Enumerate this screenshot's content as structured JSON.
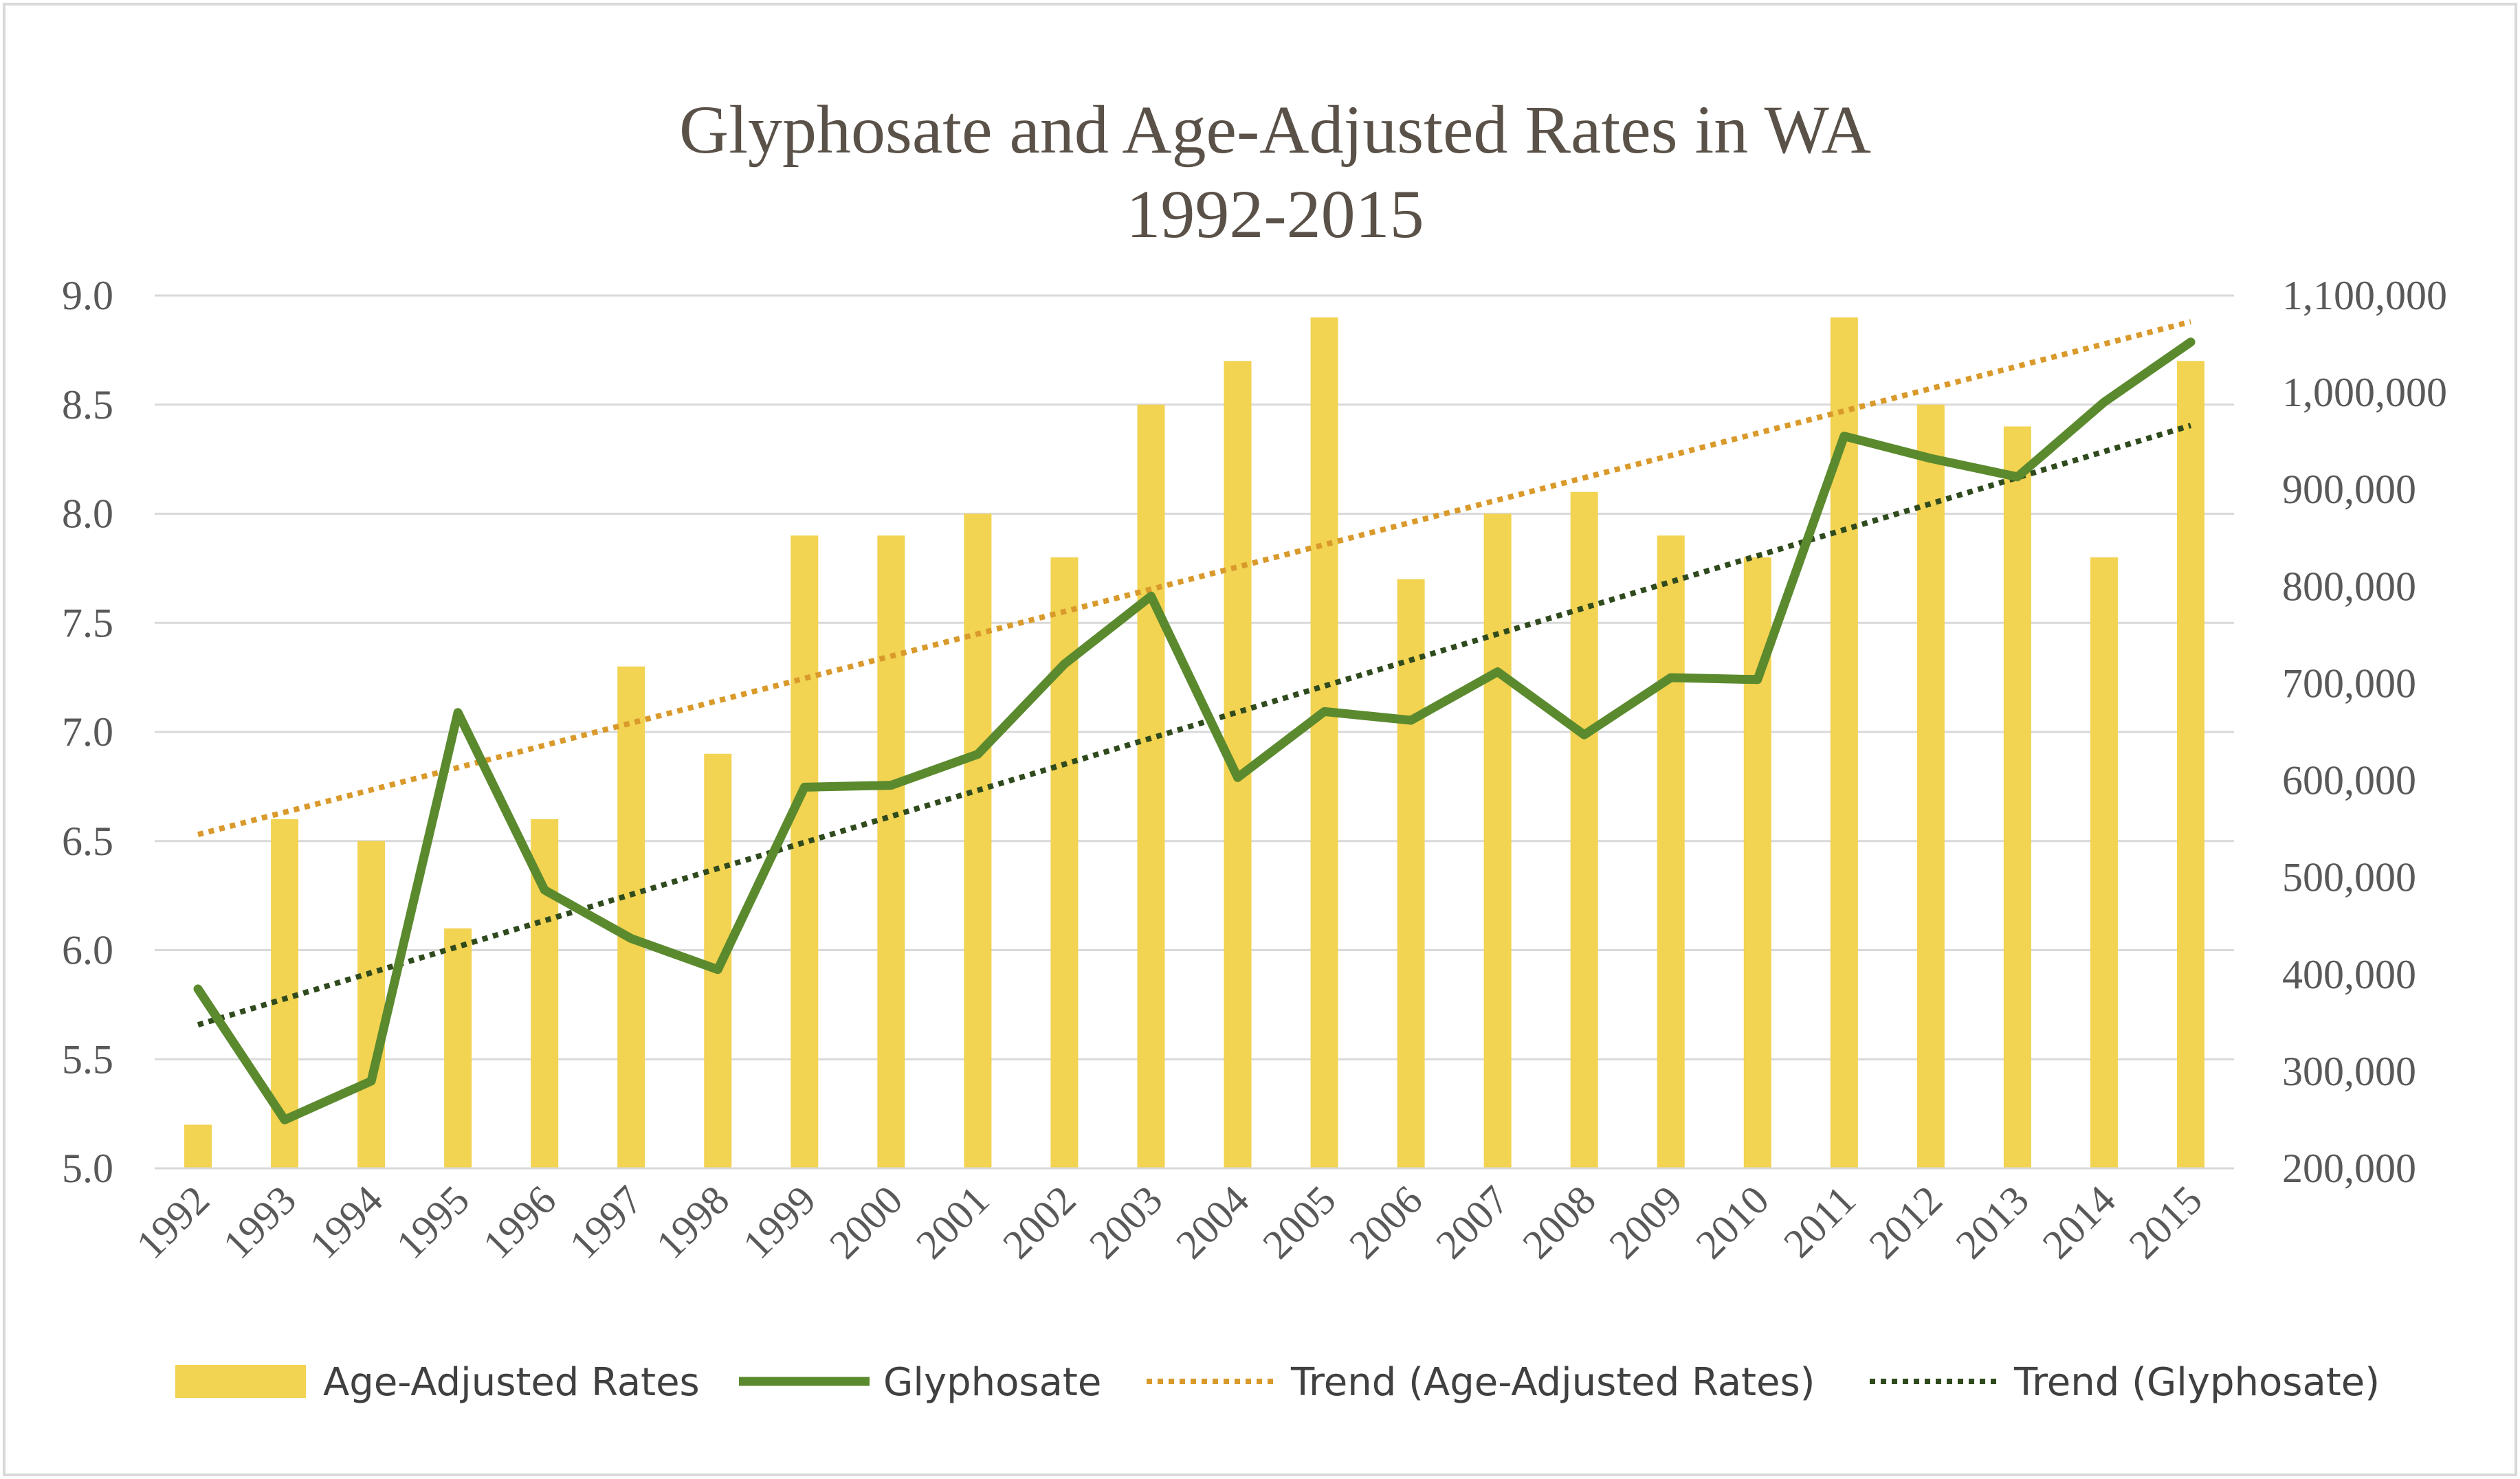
{
  "chart_data": {
    "type": "bar",
    "title": "Glyphosate and Age-Adjusted Rates in WA",
    "subtitle": "1992-2015",
    "categories": [
      "1992",
      "1993",
      "1994",
      "1995",
      "1996",
      "1997",
      "1998",
      "1999",
      "2000",
      "2001",
      "2002",
      "2003",
      "2004",
      "2005",
      "2006",
      "2007",
      "2008",
      "2009",
      "2010",
      "2011",
      "2012",
      "2013",
      "2014",
      "2015"
    ],
    "series": [
      {
        "name": "Age-Adjusted Rates",
        "type": "bar",
        "axis": "left",
        "color": "#f2d352",
        "values": [
          5.2,
          6.6,
          6.5,
          6.1,
          6.6,
          7.3,
          6.9,
          7.9,
          7.9,
          8.0,
          7.8,
          8.5,
          8.7,
          8.9,
          7.7,
          8.0,
          8.1,
          7.9,
          7.8,
          8.9,
          8.5,
          8.4,
          7.8,
          8.7
        ]
      },
      {
        "name": "Glyphosate",
        "type": "line",
        "axis": "right",
        "color": "#5b8a2e",
        "values": [
          385000,
          250000,
          290000,
          670000,
          487000,
          437000,
          405000,
          593000,
          595000,
          627000,
          720000,
          790000,
          603000,
          671000,
          662000,
          712000,
          647000,
          706000,
          704000,
          955000,
          932000,
          913000,
          990000,
          1052000
        ]
      },
      {
        "name": "Trend (Age-Adjusted Rates)",
        "type": "trendline",
        "axis": "left",
        "color": "#d99a2b",
        "style": "dotted",
        "start": 6.53,
        "end": 8.88
      },
      {
        "name": "Trend (Glyphosate)",
        "type": "trendline",
        "axis": "right",
        "color": "#2f4a1c",
        "style": "dotted",
        "start": 348000,
        "end": 966000
      }
    ],
    "y_left": {
      "ylim": [
        5.0,
        9.0
      ],
      "ticks": [
        "5.0",
        "5.5",
        "6.0",
        "6.5",
        "7.0",
        "7.5",
        "8.0",
        "8.5",
        "9.0"
      ]
    },
    "y_right": {
      "ylim": [
        200000,
        1100000
      ],
      "ticks": [
        "200,000",
        "300,000",
        "400,000",
        "500,000",
        "600,000",
        "700,000",
        "800,000",
        "900,000",
        "1,000,000",
        "1,100,000"
      ]
    },
    "grid": true,
    "legend_position": "bottom"
  }
}
